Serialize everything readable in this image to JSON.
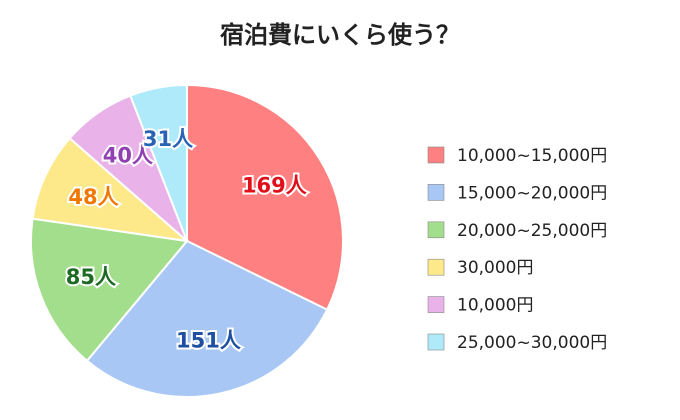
{
  "chart_data": {
    "type": "pie",
    "title": "宿泊費にいくら使う？",
    "categories": [
      "10,000~15,000円",
      "15,000~20,000円",
      "20,000~25,000円",
      "30,000円",
      "10,000円",
      "25,000~30,000円"
    ],
    "values": [
      169,
      151,
      85,
      48,
      40,
      31
    ],
    "value_labels": [
      "169人",
      "151人",
      "85人",
      "48人",
      "40人",
      "31人"
    ],
    "colors": [
      "#ff8080",
      "#a9c7f5",
      "#a3de8c",
      "#fde88a",
      "#e9b3ea",
      "#aeeafa"
    ],
    "label_colors": [
      "#e0101a",
      "#1e4fa0",
      "#1d6a22",
      "#f07800",
      "#9040b0",
      "#2a62b5"
    ],
    "legend": "right"
  }
}
